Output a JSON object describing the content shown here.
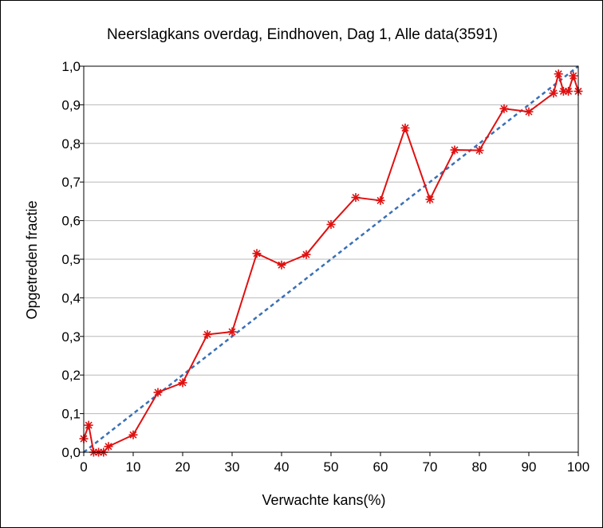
{
  "chart_data": {
    "type": "line",
    "title": "Neerslagkans overdag, Eindhoven, Dag 1, Alle data(3591)",
    "xlabel": "Verwachte kans(%)",
    "ylabel": "Opgetreden fractie",
    "xlim": [
      0,
      100
    ],
    "ylim": [
      0,
      1
    ],
    "xticks": [
      0,
      10,
      20,
      30,
      40,
      50,
      60,
      70,
      80,
      90,
      100
    ],
    "yticks": [
      0,
      0.1,
      0.2,
      0.3,
      0.4,
      0.5,
      0.6,
      0.7,
      0.8,
      0.9,
      1.0
    ],
    "xtick_labels": [
      "0",
      "10",
      "20",
      "30",
      "40",
      "50",
      "60",
      "70",
      "80",
      "90",
      "100"
    ],
    "ytick_labels": [
      "0,0",
      "0,1",
      "0,2",
      "0,3",
      "0,4",
      "0,5",
      "0,6",
      "0,7",
      "0,8",
      "0,9",
      "1,0"
    ],
    "grid": "horizontal",
    "legend": "none",
    "series": [
      {
        "style": "solid-with-asterisk-markers",
        "color": "#e01010",
        "x": [
          0,
          1,
          2,
          3,
          4,
          5,
          10,
          15,
          20,
          25,
          30,
          35,
          40,
          45,
          50,
          55,
          60,
          65,
          70,
          75,
          80,
          85,
          90,
          95,
          96,
          97,
          98,
          99,
          100
        ],
        "y": [
          0.035,
          0.07,
          0.0,
          0.0,
          0.0,
          0.015,
          0.045,
          0.155,
          0.18,
          0.305,
          0.312,
          0.515,
          0.485,
          0.512,
          0.59,
          0.66,
          0.652,
          0.84,
          0.655,
          0.783,
          0.782,
          0.89,
          0.882,
          0.93,
          0.98,
          0.935,
          0.935,
          0.975,
          0.935
        ]
      },
      {
        "style": "dashed-reference",
        "color": "#3a6fb5",
        "x": [
          0,
          100
        ],
        "y": [
          0,
          1
        ]
      }
    ]
  }
}
